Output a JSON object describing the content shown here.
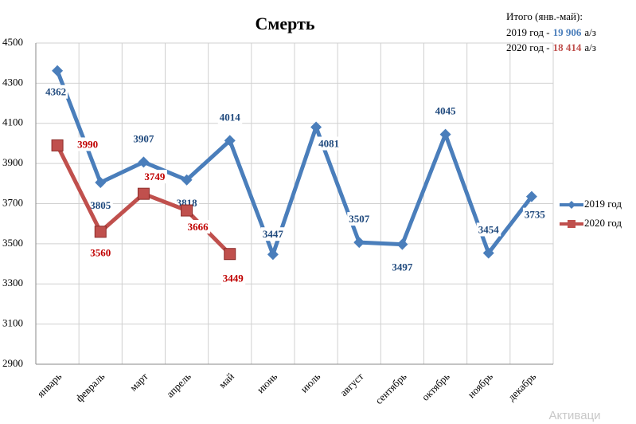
{
  "chart_data": {
    "type": "line",
    "title": "Смерть",
    "categories": [
      "январь",
      "февраль",
      "март",
      "апрель",
      "май",
      "июнь",
      "июль",
      "август",
      "сентябрь",
      "октябрь",
      "ноябрь",
      "декабрь"
    ],
    "series": [
      {
        "name": "2019 год",
        "color": "#4a7ebb",
        "label_color": "#1f497d",
        "marker": "diamond",
        "values": [
          4362,
          3805,
          3907,
          3818,
          4014,
          3447,
          4081,
          3507,
          3497,
          4045,
          3454,
          3735
        ]
      },
      {
        "name": "2020 год",
        "color": "#c0504d",
        "label_color": "#c00000",
        "marker": "square",
        "values": [
          3990,
          3560,
          3749,
          3666,
          3449,
          null,
          null,
          null,
          null,
          null,
          null,
          null
        ]
      }
    ],
    "ylim": [
      2900,
      4500
    ],
    "yticks": [
      2900,
      3100,
      3300,
      3500,
      3700,
      3900,
      4100,
      4300,
      4500
    ],
    "grid": true,
    "summary": {
      "title": "Итого (янв.-май):",
      "rows": [
        {
          "label": "2019 год -",
          "total": "19 906",
          "unit": "а/з"
        },
        {
          "label": "2020 год -",
          "total": "18 414",
          "unit": "а/з"
        }
      ]
    },
    "watermark": "Активаци"
  }
}
